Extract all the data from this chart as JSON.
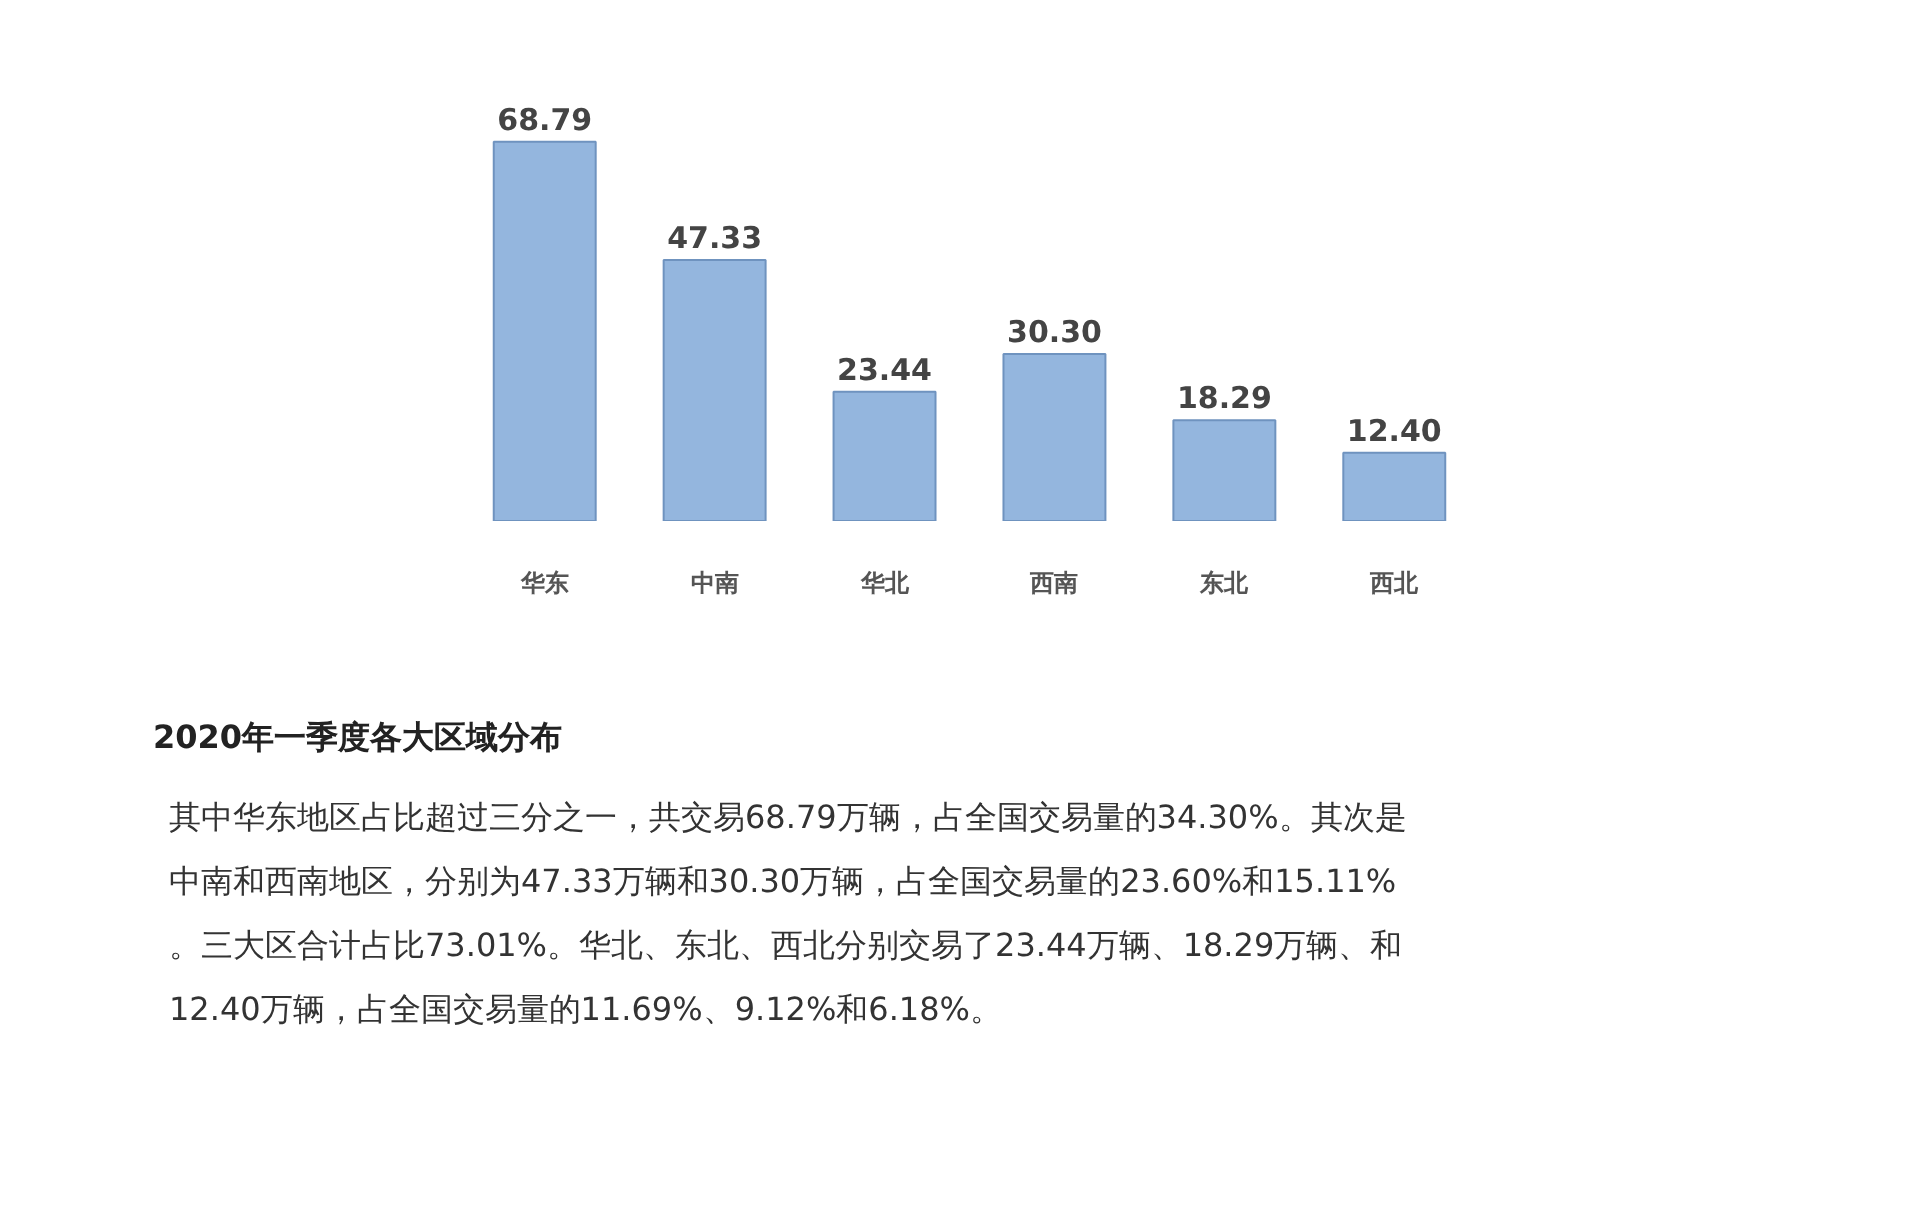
{
  "chart_data": {
    "type": "bar",
    "title": "2020年一季度各大区域分布",
    "categories": [
      "华东",
      "中南",
      "华北",
      "西南",
      "东北",
      "西北"
    ],
    "values": [
      68.79,
      47.33,
      23.44,
      30.3,
      18.29,
      12.4
    ],
    "color": "#94b6de",
    "value_labels": [
      "68.79",
      "47.33",
      "23.44",
      "30.30",
      "18.29",
      "12.40"
    ],
    "grid": false,
    "annotations": [
      "其中华东地区占比超过三分之一，共交易68.79万辆，占全国交易量的34.30%。其次是中南和西南地区，分别为47.33万辆和30.30万辆，占全国交易量的23.60%和15.11%。三大区合计占比73.01%。华北、东北、西北分别交易了23.44万辆、18.29万辆、和12.40万辆，占全国交易量的11.69%、9.12%和6.18%。"
    ]
  }
}
